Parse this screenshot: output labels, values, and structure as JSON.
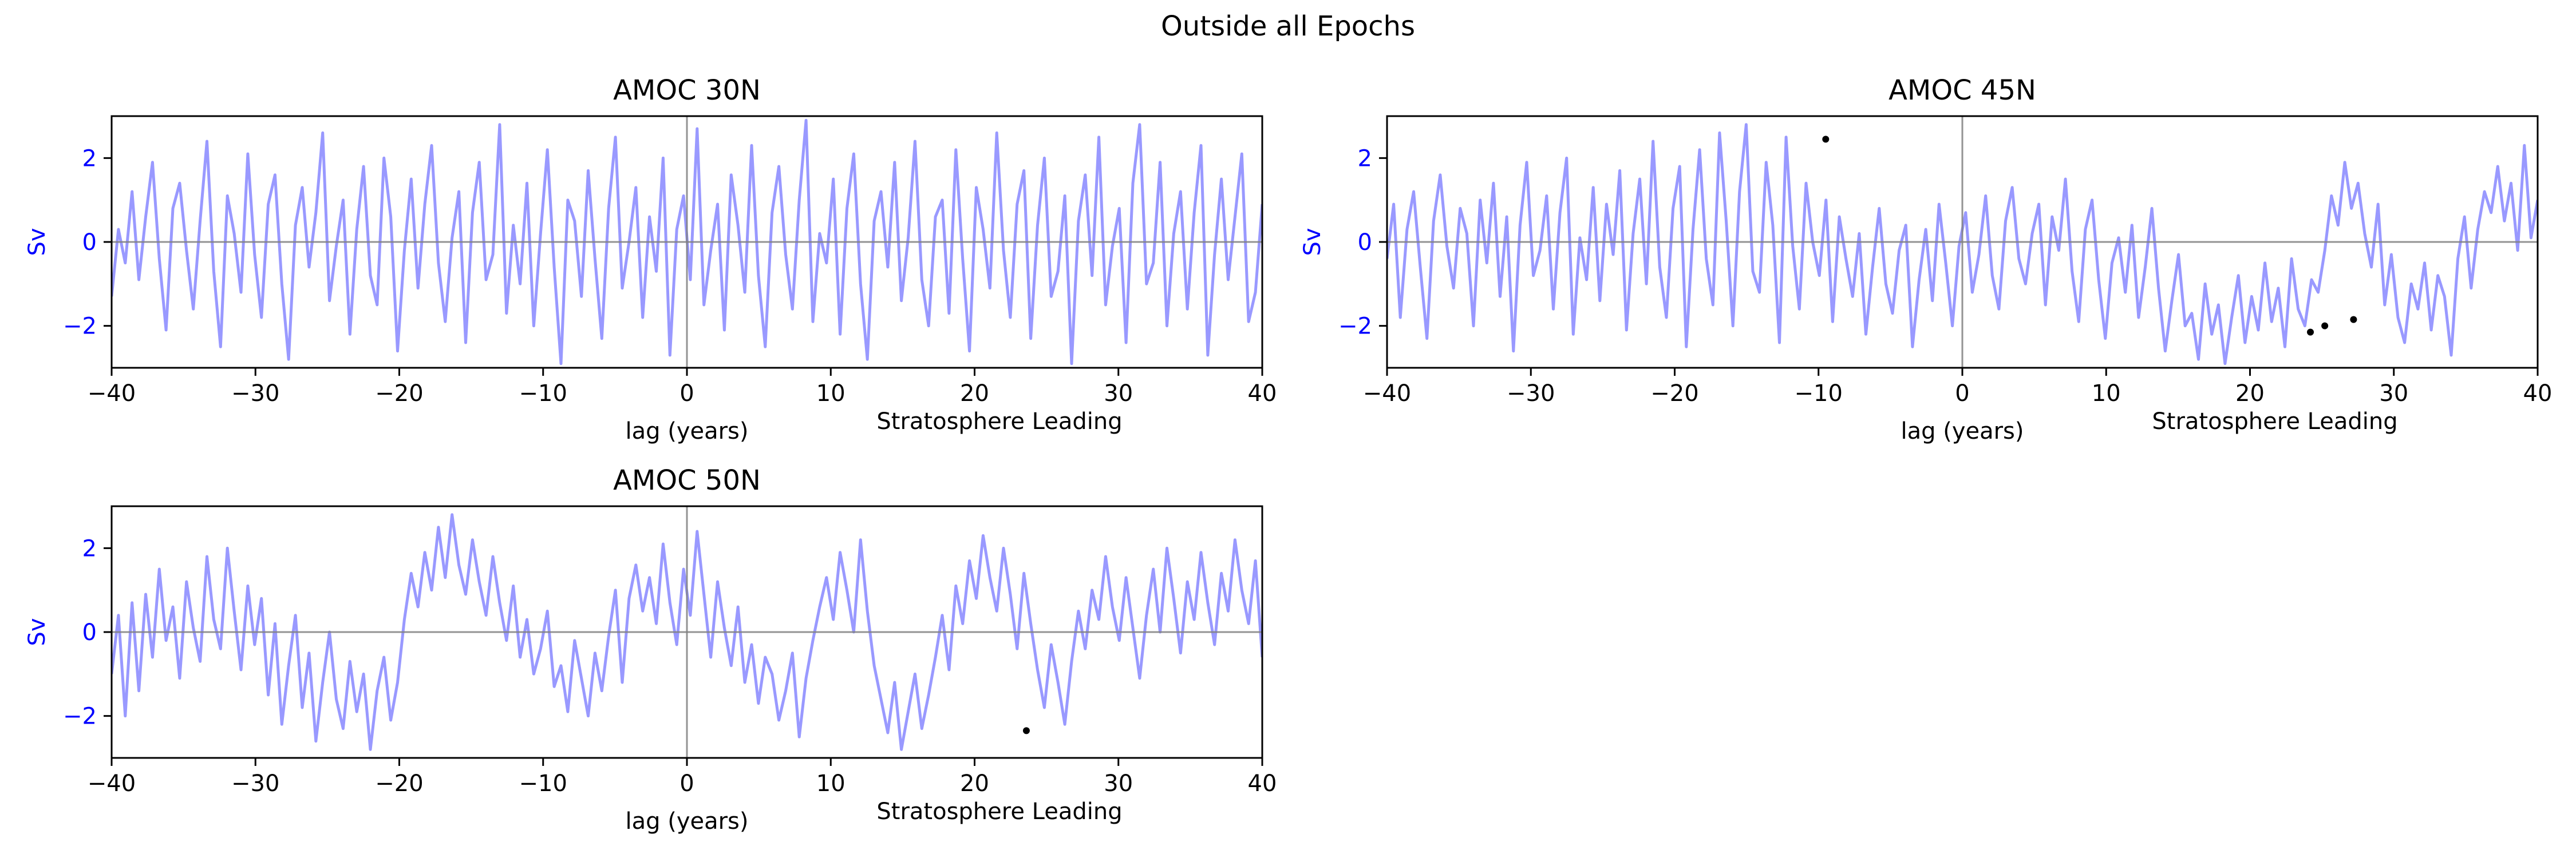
{
  "figure": {
    "suptitle": "Outside all Epochs"
  },
  "colors": {
    "series": "#9999ff",
    "ylabel": "#0000ff",
    "ytick": "#0000ff",
    "zero_line": "#808080",
    "marker": "#000000",
    "axis": "#000000"
  },
  "chart_data": [
    {
      "type": "line",
      "title": "AMOC 30N",
      "xlabel": "lag (years)",
      "xlabel_right": "Stratosphere Leading",
      "ylabel": "Sv",
      "xlim": [
        -40,
        40
      ],
      "ylim": [
        -3,
        3
      ],
      "xticks": [
        "−40",
        "−30",
        "−20",
        "−10",
        "0",
        "10",
        "20",
        "30",
        "40"
      ],
      "yticks": [
        "−2",
        "0",
        "2"
      ],
      "grid": false,
      "reference_lines": {
        "horizontal": 0,
        "vertical": 0
      },
      "series": [
        {
          "x_range": [
            -40,
            40
          ],
          "values": [
            -1.3,
            0.3,
            -0.5,
            1.2,
            -0.9,
            0.6,
            1.9,
            -0.4,
            -2.1,
            0.8,
            1.4,
            -0.2,
            -1.6,
            0.5,
            2.4,
            -0.7,
            -2.5,
            1.1,
            0.2,
            -1.2,
            2.1,
            -0.3,
            -1.8,
            0.9,
            1.6,
            -1.0,
            -2.8,
            0.4,
            1.3,
            -0.6,
            0.7,
            2.6,
            -1.4,
            -0.1,
            1.0,
            -2.2,
            0.3,
            1.8,
            -0.8,
            -1.5,
            2.0,
            0.6,
            -2.6,
            -0.2,
            1.5,
            -1.1,
            0.9,
            2.3,
            -0.5,
            -1.9,
            0.1,
            1.2,
            -2.4,
            0.7,
            1.9,
            -0.9,
            -0.3,
            2.8,
            -1.7,
            0.4,
            -1.0,
            1.4,
            -2.0,
            0.2,
            2.2,
            -0.6,
            -2.9,
            1.0,
            0.5,
            -1.3,
            1.7,
            -0.4,
            -2.3,
            0.8,
            2.5,
            -1.1,
            0.0,
            1.3,
            -1.8,
            0.6,
            -0.7,
            2.0,
            -2.7,
            0.3,
            1.1,
            -0.9,
            2.7,
            -1.5,
            -0.2,
            0.9,
            -2.1,
            1.6,
            0.4,
            -1.2,
            2.3,
            -0.8,
            -2.5,
            0.7,
            1.8,
            -0.3,
            -1.6,
            1.0,
            2.9,
            -1.9,
            0.2,
            -0.5,
            1.5,
            -2.2,
            0.8,
            2.1,
            -1.0,
            -2.8,
            0.5,
            1.2,
            -0.6,
            1.9,
            -1.4,
            0.1,
            2.4,
            -0.9,
            -2.0,
            0.6,
            1.0,
            -1.7,
            2.2,
            -0.4,
            -2.6,
            1.3,
            0.3,
            -1.1,
            2.6,
            -0.2,
            -1.8,
            0.9,
            1.7,
            -2.3,
            0.4,
            2.0,
            -1.3,
            -0.7,
            1.1,
            -2.9,
            0.5,
            1.6,
            -0.8,
            2.5,
            -1.5,
            -0.1,
            0.8,
            -2.4,
            1.4,
            2.8,
            -1.0,
            -0.5,
            1.9,
            -2.0,
            0.2,
            1.2,
            -1.6,
            0.7,
            2.3,
            -2.7,
            -0.3,
            1.5,
            -0.9,
            0.6,
            2.1,
            -1.9,
            -1.2,
            0.9
          ],
          "markers": []
        }
      ]
    },
    {
      "type": "line",
      "title": "AMOC 45N",
      "xlabel": "lag (years)",
      "xlabel_right": "Stratosphere Leading",
      "ylabel": "Sv",
      "xlim": [
        -40,
        40
      ],
      "ylim": [
        -3,
        3
      ],
      "xticks": [
        "−40",
        "−30",
        "−20",
        "−10",
        "0",
        "10",
        "20",
        "30",
        "40"
      ],
      "yticks": [
        "−2",
        "0",
        "2"
      ],
      "grid": false,
      "reference_lines": {
        "horizontal": 0,
        "vertical": 0
      },
      "series": [
        {
          "x_range": [
            -40,
            40
          ],
          "values": [
            -0.4,
            0.9,
            -1.8,
            0.3,
            1.2,
            -0.6,
            -2.3,
            0.5,
            1.6,
            -0.1,
            -1.1,
            0.8,
            0.2,
            -2.0,
            1.0,
            -0.5,
            1.4,
            -1.3,
            0.6,
            -2.6,
            0.4,
            1.9,
            -0.8,
            -0.2,
            1.1,
            -1.6,
            0.7,
            2.0,
            -2.2,
            0.1,
            -0.9,
            1.3,
            -1.4,
            0.9,
            -0.3,
            1.7,
            -2.1,
            0.2,
            1.5,
            -1.0,
            2.4,
            -0.6,
            -1.8,
            0.8,
            1.8,
            -2.5,
            0.3,
            2.2,
            -0.4,
            -1.5,
            2.6,
            0.5,
            -2.0,
            1.2,
            2.8,
            -0.7,
            -1.2,
            1.9,
            0.4,
            -2.4,
            2.5,
            -0.1,
            -1.6,
            1.4,
            0.0,
            -0.8,
            1.0,
            -1.9,
            0.6,
            -0.4,
            -1.3,
            0.2,
            -2.2,
            -0.6,
            0.8,
            -1.0,
            -1.7,
            -0.2,
            0.4,
            -2.5,
            -0.9,
            0.3,
            -1.4,
            0.9,
            -0.5,
            -2.0,
            -0.1,
            0.7,
            -1.2,
            -0.3,
            1.1,
            -0.8,
            -1.6,
            0.5,
            1.3,
            -0.4,
            -1.0,
            0.2,
            0.9,
            -1.5,
            0.6,
            -0.2,
            1.5,
            -0.7,
            -1.9,
            0.3,
            1.0,
            -0.9,
            -2.3,
            -0.5,
            0.1,
            -1.2,
            0.4,
            -1.8,
            -0.6,
            0.8,
            -1.1,
            -2.6,
            -1.4,
            -0.3,
            -2.0,
            -1.7,
            -2.8,
            -1.0,
            -2.2,
            -1.5,
            -2.9,
            -1.8,
            -0.8,
            -2.4,
            -1.3,
            -2.1,
            -0.5,
            -1.9,
            -1.1,
            -2.5,
            -0.4,
            -1.6,
            -2.0,
            -0.9,
            -1.2,
            -0.2,
            1.1,
            0.4,
            1.9,
            0.8,
            1.4,
            0.2,
            -0.6,
            0.9,
            -1.5,
            -0.3,
            -1.8,
            -2.4,
            -1.0,
            -1.6,
            -0.5,
            -2.1,
            -0.8,
            -1.3,
            -2.7,
            -0.4,
            0.6,
            -1.1,
            0.3,
            1.2,
            0.7,
            1.8,
            0.5,
            1.4,
            -0.2,
            2.3,
            0.1,
            1.0
          ],
          "markers": [
            {
              "x": -9.5,
              "y": 2.45
            },
            {
              "x": 24.2,
              "y": -2.15
            },
            {
              "x": 25.2,
              "y": -2.0
            },
            {
              "x": 27.2,
              "y": -1.85
            }
          ]
        }
      ]
    },
    {
      "type": "line",
      "title": "AMOC 50N",
      "xlabel": "lag (years)",
      "xlabel_right": "Stratosphere Leading",
      "ylabel": "Sv",
      "xlim": [
        -40,
        40
      ],
      "ylim": [
        -3,
        3
      ],
      "xticks": [
        "−40",
        "−30",
        "−20",
        "−10",
        "0",
        "10",
        "20",
        "30",
        "40"
      ],
      "yticks": [
        "−2",
        "0",
        "2"
      ],
      "grid": false,
      "reference_lines": {
        "horizontal": 0,
        "vertical": 0
      },
      "series": [
        {
          "x_range": [
            -40,
            40
          ],
          "values": [
            -1.0,
            0.4,
            -2.0,
            0.7,
            -1.4,
            0.9,
            -0.6,
            1.5,
            -0.2,
            0.6,
            -1.1,
            1.2,
            0.1,
            -0.7,
            1.8,
            0.3,
            -0.4,
            2.0,
            0.5,
            -0.9,
            1.1,
            -0.3,
            0.8,
            -1.5,
            0.2,
            -2.2,
            -0.8,
            0.4,
            -1.8,
            -0.5,
            -2.6,
            -1.2,
            0.0,
            -1.6,
            -2.3,
            -0.7,
            -1.9,
            -1.0,
            -2.8,
            -1.4,
            -0.6,
            -2.1,
            -1.2,
            0.3,
            1.4,
            0.6,
            1.9,
            1.0,
            2.5,
            1.3,
            2.8,
            1.6,
            0.9,
            2.2,
            1.2,
            0.4,
            1.8,
            0.7,
            -0.2,
            1.1,
            -0.6,
            0.3,
            -1.0,
            -0.4,
            0.5,
            -1.3,
            -0.8,
            -1.9,
            -0.2,
            -1.1,
            -2.0,
            -0.5,
            -1.4,
            -0.1,
            1.0,
            -1.2,
            0.8,
            1.6,
            0.5,
            1.3,
            0.2,
            2.1,
            0.7,
            -0.3,
            1.5,
            0.4,
            2.4,
            0.9,
            -0.6,
            1.2,
            0.1,
            -0.8,
            0.6,
            -1.2,
            -0.3,
            -1.7,
            -0.6,
            -1.0,
            -2.1,
            -1.4,
            -0.5,
            -2.5,
            -1.1,
            -0.2,
            0.6,
            1.3,
            0.3,
            1.9,
            1.0,
            0.0,
            2.2,
            0.5,
            -0.8,
            -1.6,
            -2.4,
            -1.2,
            -2.8,
            -1.9,
            -1.0,
            -2.3,
            -1.5,
            -0.6,
            0.4,
            -0.9,
            1.1,
            0.2,
            1.7,
            0.8,
            2.3,
            1.3,
            0.5,
            2.0,
            0.9,
            -0.4,
            1.4,
            0.2,
            -0.9,
            -1.8,
            -0.3,
            -1.2,
            -2.2,
            -0.7,
            0.5,
            -0.4,
            1.0,
            0.3,
            1.8,
            0.6,
            -0.2,
            1.3,
            0.1,
            -1.1,
            0.4,
            1.5,
            0.0,
            2.0,
            0.8,
            -0.5,
            1.2,
            0.3,
            1.9,
            0.7,
            -0.3,
            1.4,
            0.5,
            2.2,
            1.0,
            0.2,
            1.7,
            -0.6
          ],
          "markers": [
            {
              "x": 23.6,
              "y": -2.35
            }
          ]
        }
      ]
    }
  ]
}
